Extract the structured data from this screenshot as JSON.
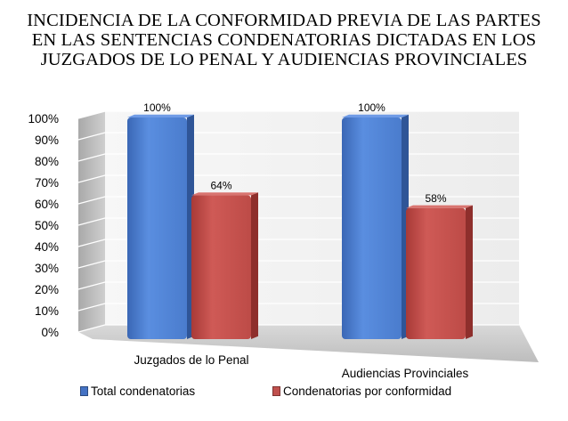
{
  "chart_data": {
    "type": "bar",
    "title_lines": [
      "INCIDENCIA DE LA CONFORMIDAD PREVIA DE LAS PARTES",
      "EN LAS SENTENCIAS CONDENATORIAS DICTADAS EN LOS",
      "JUZGADOS DE LO PENAL Y AUDIENCIAS PROVINCIALES"
    ],
    "categories": [
      "Juzgados de lo Penal",
      "Audiencias Provinciales"
    ],
    "series": [
      {
        "name": "Total condenatorias",
        "values": [
          100,
          100
        ],
        "labels": [
          "100%",
          "100%"
        ],
        "color": "#4472C4"
      },
      {
        "name": "Condenatorias por conformidad",
        "values": [
          64,
          58
        ],
        "labels": [
          "64%",
          "58%"
        ],
        "color": "#C0504D"
      }
    ],
    "y_ticks": [
      "0%",
      "10%",
      "20%",
      "30%",
      "40%",
      "50%",
      "60%",
      "70%",
      "80%",
      "90%",
      "100%"
    ],
    "ylim": [
      0,
      100
    ],
    "grid": true,
    "legend_position": "bottom",
    "three_d": true
  }
}
